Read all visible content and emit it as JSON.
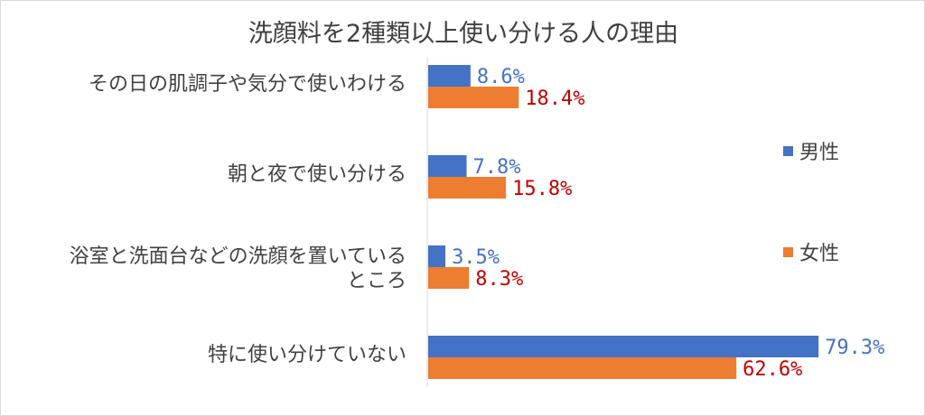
{
  "chart_data": {
    "type": "bar",
    "orientation": "horizontal",
    "title": "洗顔料を2種類以上使い分ける人の理由",
    "categories": [
      [
        "その日の肌調子や気分で使いわける"
      ],
      [
        "朝と夜で使い分ける"
      ],
      [
        "浴室と洗面台などの洗顔を置いている",
        "ところ"
      ],
      [
        "特に使い分けていない"
      ]
    ],
    "series": [
      {
        "name": "男性",
        "values": [
          8.6,
          7.8,
          3.5,
          79.3
        ],
        "labels": [
          "8.6%",
          "7.8%",
          "3.5%",
          "79.3%"
        ],
        "color": "#4472C4",
        "label_color": "#4472C4"
      },
      {
        "name": "女性",
        "values": [
          18.4,
          15.8,
          8.3,
          62.6
        ],
        "labels": [
          "18.4%",
          "15.8%",
          "8.3%",
          "62.6%"
        ],
        "color": "#ED7D31",
        "label_color": "#C00000"
      }
    ],
    "xlim": [
      0,
      100
    ],
    "grid": false,
    "legend": "right"
  }
}
